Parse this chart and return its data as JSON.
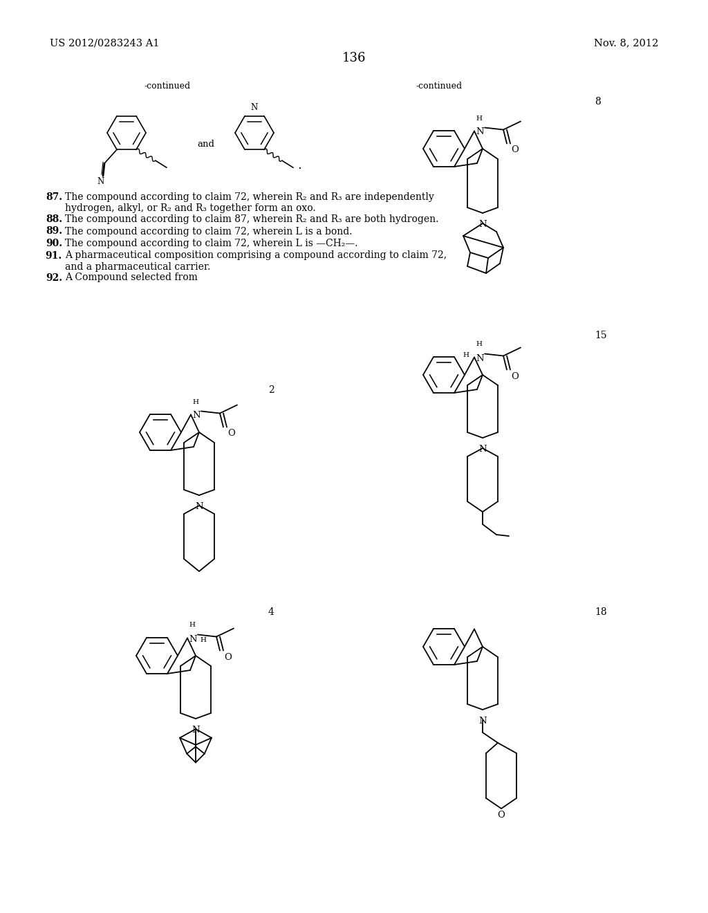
{
  "background_color": "#ffffff",
  "header_left": "US 2012/0283243 A1",
  "header_right": "Nov. 8, 2012",
  "page_number": "136",
  "claims": [
    [
      "87",
      "The compound according to claim ",
      "72",
      ", wherein R",
      "2",
      " and R",
      "3",
      " are independently hydrogen, alkyl, or R",
      "2",
      " and R",
      "3",
      " together form an oxo."
    ],
    [
      "88",
      "The compound according to claim ",
      "87",
      ", wherein R",
      "2",
      " and R",
      "3",
      " are both hydrogen."
    ],
    [
      "89",
      "The compound according to claim ",
      "72",
      ", wherein L is a bond."
    ],
    [
      "90",
      "The compound according to claim ",
      "72",
      ", wherein L is —CH₂—."
    ],
    [
      "91",
      "A pharmaceutical composition comprising a compound according to claim ",
      "72",
      ", and a pharmaceutical carrier."
    ],
    [
      "92",
      "A Compound selected from"
    ]
  ]
}
